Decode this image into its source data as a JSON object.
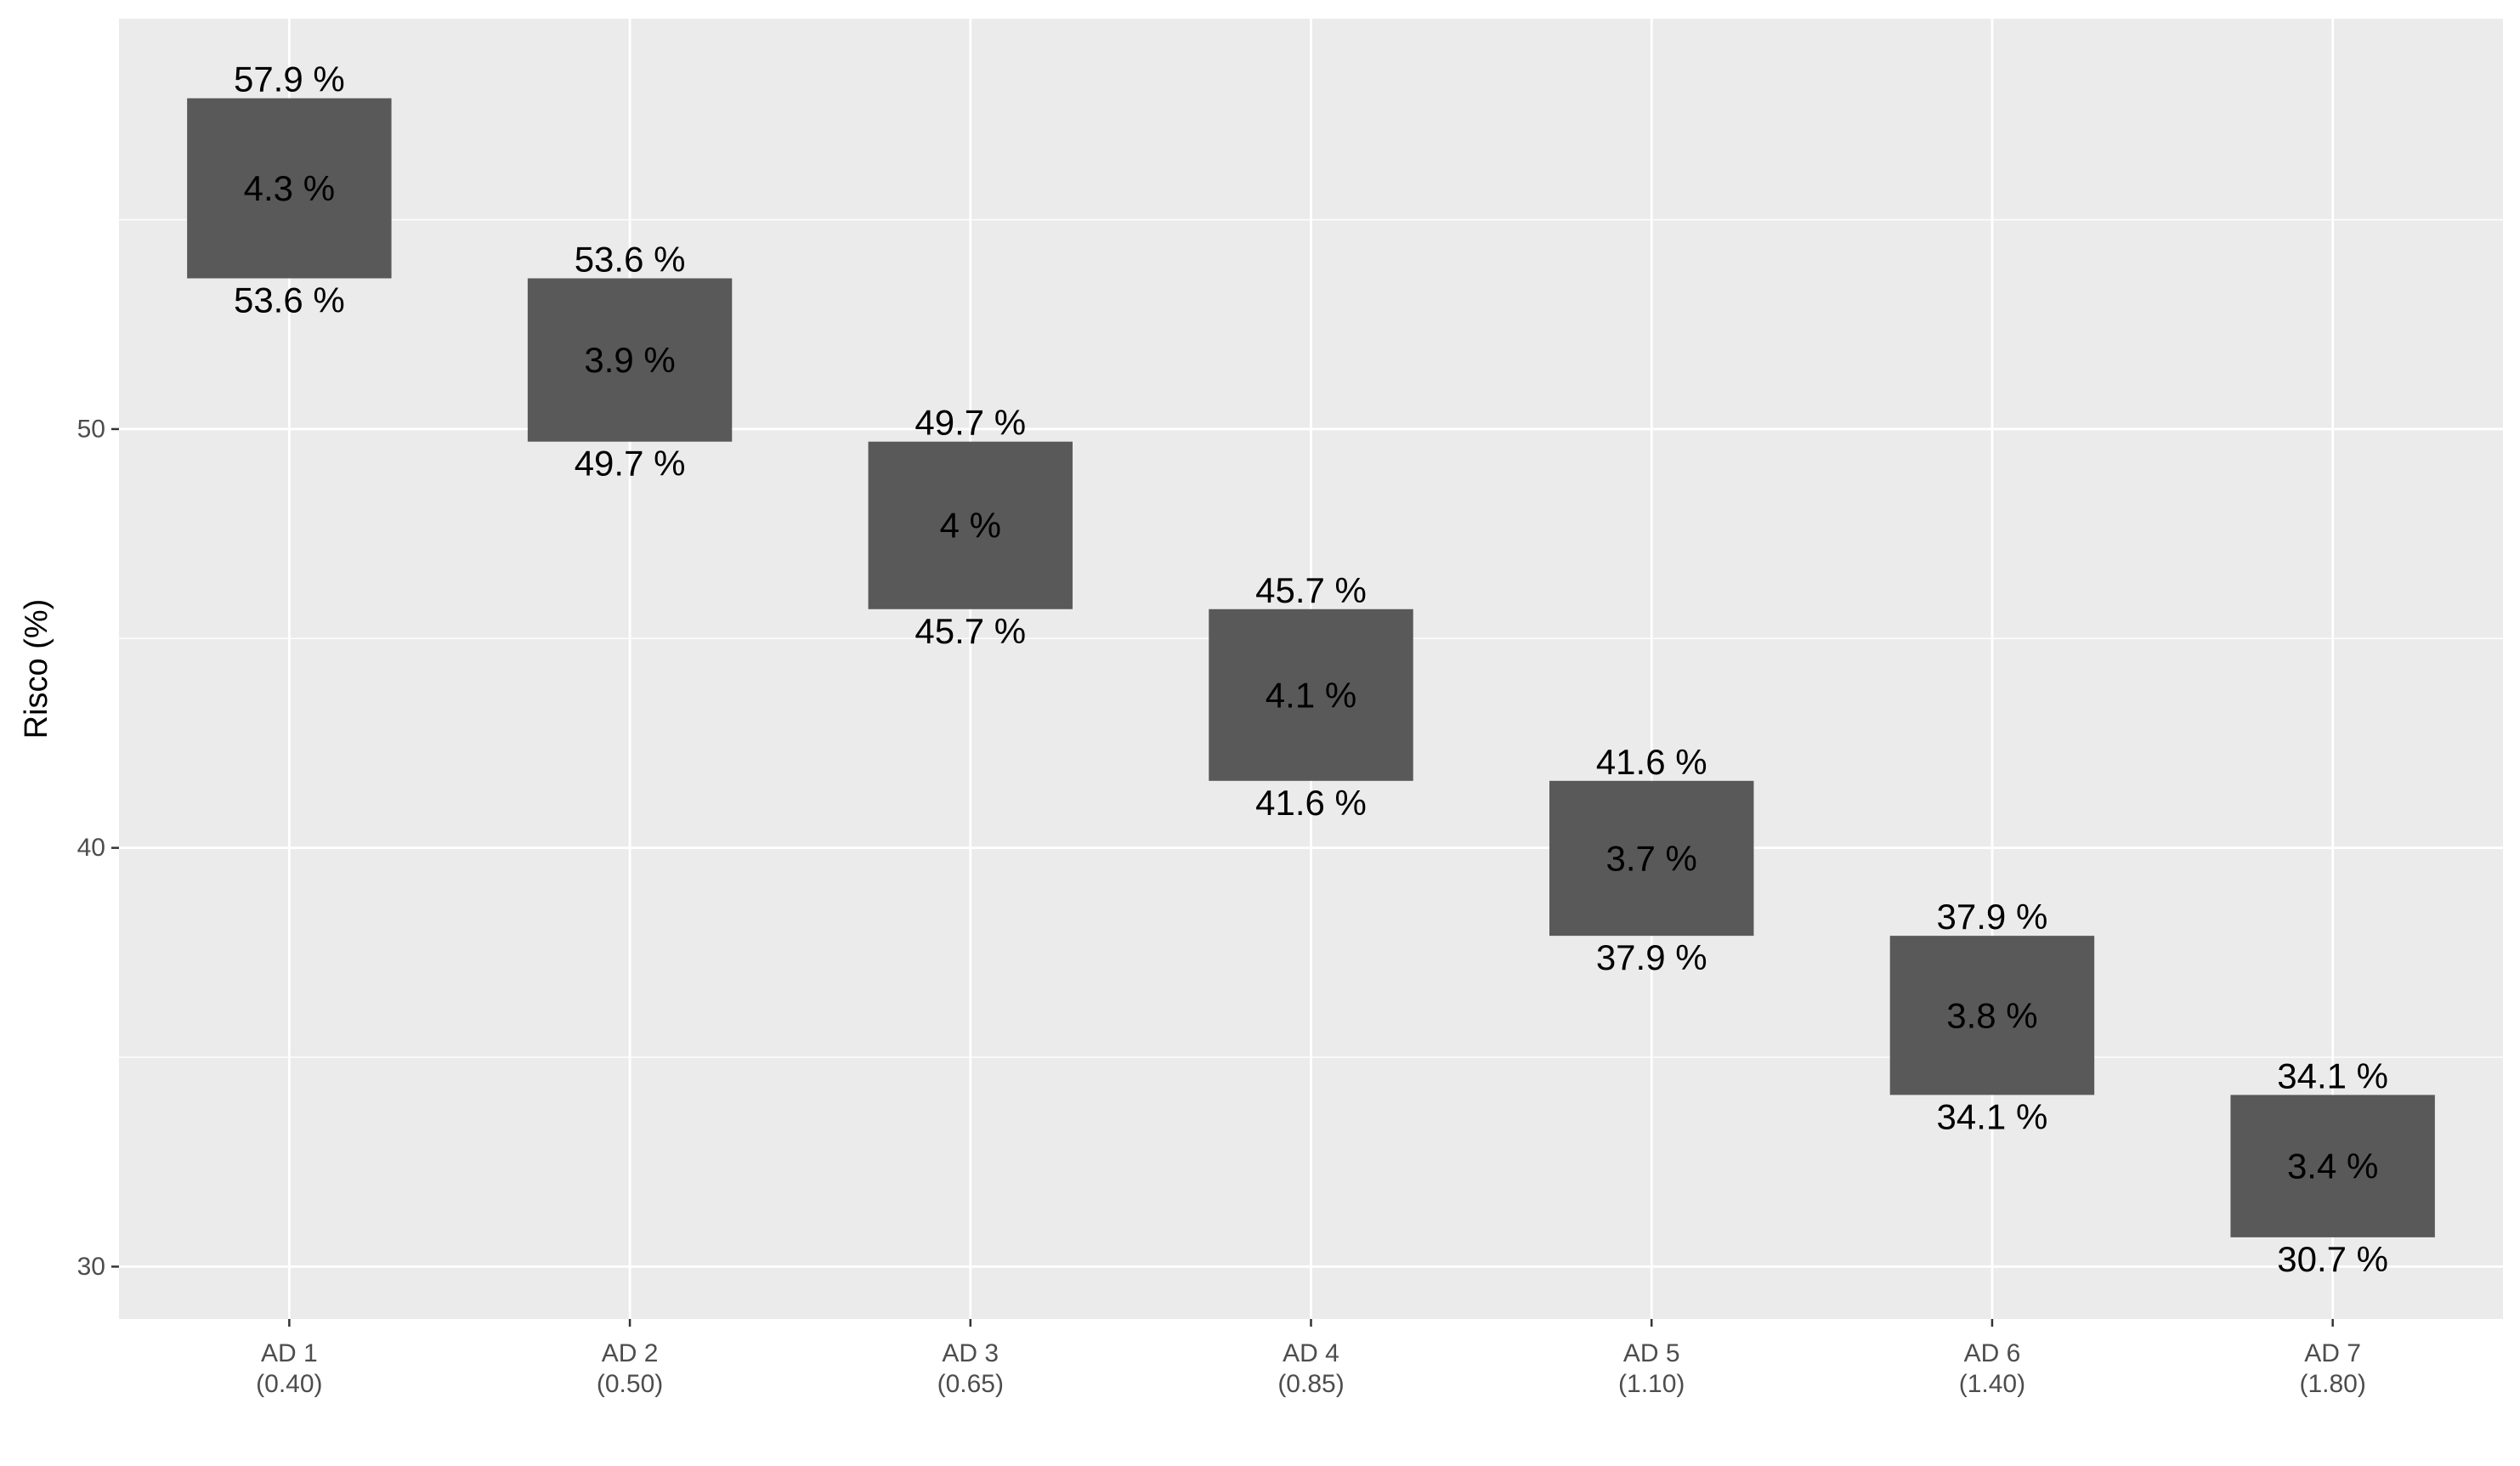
{
  "chart_data": {
    "type": "bar",
    "title": "",
    "xlabel": "",
    "ylabel": "Risco (%)",
    "ylim": [
      28.75,
      59.8
    ],
    "yticks": [
      30,
      40,
      50
    ],
    "grid": true,
    "colors": {
      "panel": "#ebebeb",
      "grid_major": "#ffffff",
      "bar": "#595959",
      "text": "#000000",
      "tick_text": "#4d4d4d"
    },
    "categories": [
      [
        "AD 1",
        "(0.40)"
      ],
      [
        "AD 2",
        "(0.50)"
      ],
      [
        "AD 3",
        "(0.65)"
      ],
      [
        "AD 4",
        "(0.85)"
      ],
      [
        "AD 5",
        "(1.10)"
      ],
      [
        "AD 6",
        "(1.40)"
      ],
      [
        "AD 7",
        "(1.80)"
      ]
    ],
    "bars": [
      {
        "top": 57.9,
        "bottom": 53.6,
        "top_label": "57.9 %",
        "diff_label": "4.3 %",
        "bottom_label": "53.6 %"
      },
      {
        "top": 53.6,
        "bottom": 49.7,
        "top_label": "53.6 %",
        "diff_label": "3.9 %",
        "bottom_label": "49.7 %"
      },
      {
        "top": 49.7,
        "bottom": 45.7,
        "top_label": "49.7 %",
        "diff_label": "4 %",
        "bottom_label": "45.7 %"
      },
      {
        "top": 45.7,
        "bottom": 41.6,
        "top_label": "45.7 %",
        "diff_label": "4.1 %",
        "bottom_label": "41.6 %"
      },
      {
        "top": 41.6,
        "bottom": 37.9,
        "top_label": "41.6 %",
        "diff_label": "3.7 %",
        "bottom_label": "37.9 %"
      },
      {
        "top": 37.9,
        "bottom": 34.1,
        "top_label": "37.9 %",
        "diff_label": "3.8 %",
        "bottom_label": "34.1 %"
      },
      {
        "top": 34.1,
        "bottom": 30.7,
        "top_label": "34.1 %",
        "diff_label": "3.4 %",
        "bottom_label": "30.7 %"
      }
    ]
  }
}
